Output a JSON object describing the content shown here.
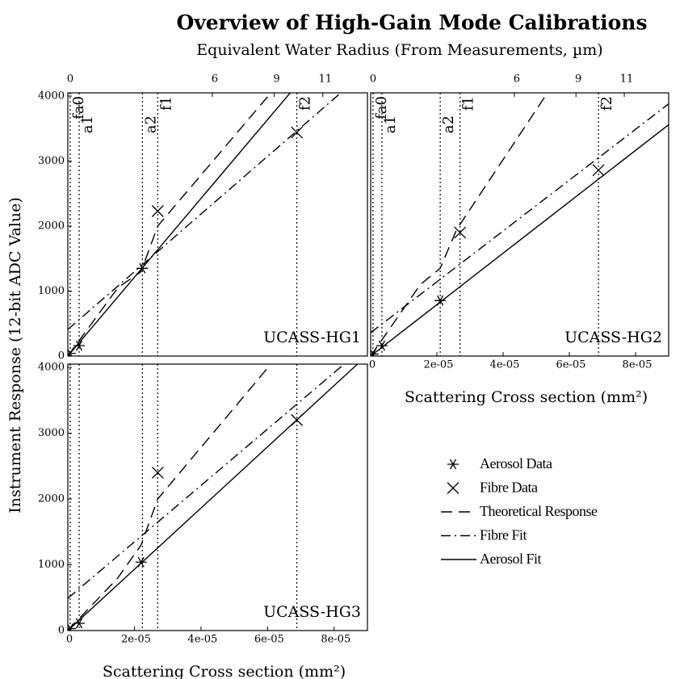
{
  "title": "Overview of High-Gain Mode Calibrations",
  "x2label": "Equivalent Water Radius (From Measurements, µm)",
  "ylabel": "Instrument Response (12-bit ADC Value)",
  "chart_data": [
    {
      "type": "line",
      "label": "UCASS-HG1",
      "xlim": [
        0,
        9e-05
      ],
      "ylim": [
        0,
        4050
      ],
      "yticks": [
        0,
        1000,
        2000,
        3000,
        4000
      ],
      "x2ticks": [
        0,
        {
          "value": 4.34e-05,
          "label": "6"
        },
        {
          "value": 6.2e-05,
          "label": "9"
        },
        {
          "value": 7.66e-05,
          "label": "11"
        }
      ],
      "vlines": [
        7e-07,
        3.4e-06,
        2.24e-05,
        2.7e-05,
        6.88e-05
      ],
      "vline_labels": [
        "fa0",
        "a1",
        "a2",
        "f1",
        "f2"
      ],
      "series": [
        {
          "name": "Aerosol Data",
          "style": "asterisk",
          "color": "#000000",
          "x": [
            7e-07,
            3.4e-06,
            2.24e-05
          ],
          "values": [
            40,
            160,
            1350
          ]
        },
        {
          "name": "Fibre Data",
          "style": "cross",
          "color": "#000000",
          "x": [
            2.7e-05,
            6.88e-05
          ],
          "values": [
            2230,
            3440
          ]
        },
        {
          "name": "Theoretical Response",
          "style": "dashed",
          "color": "#000000",
          "x": [
            0,
            1.5e-05,
            2.2e-05,
            2.7e-05,
            6.1e-05
          ],
          "values": [
            0,
            1050,
            1300,
            2000,
            4050
          ]
        },
        {
          "name": "Fibre Fit",
          "style": "dashdot",
          "color": "#000000",
          "x": [
            0,
            8.2e-05
          ],
          "values": [
            410,
            4050
          ]
        },
        {
          "name": "Aerosol Fit",
          "style": "solid",
          "color": "#000000",
          "x": [
            0,
            6.68e-05
          ],
          "values": [
            0,
            4050
          ]
        }
      ]
    },
    {
      "type": "line",
      "label": "UCASS-HG2",
      "xlabel": "Scattering Cross section (mm²)",
      "xlim": [
        0,
        9e-05
      ],
      "ylim": [
        0,
        4050
      ],
      "xticks": [
        0,
        {
          "value": 2e-05,
          "label": "2e-05"
        },
        {
          "value": 4e-05,
          "label": "4e-05"
        },
        {
          "value": 6e-05,
          "label": "6e-05"
        },
        {
          "value": 8e-05,
          "label": "8e-05"
        }
      ],
      "x2ticks": [
        0,
        {
          "value": 4.34e-05,
          "label": "6"
        },
        {
          "value": 6.2e-05,
          "label": "9"
        },
        {
          "value": 7.66e-05,
          "label": "11"
        }
      ],
      "vlines": [
        7e-07,
        3.4e-06,
        2.1e-05,
        2.7e-05,
        6.88e-05
      ],
      "vline_labels": [
        "fa0",
        "a1",
        "a2",
        "f1",
        "f2"
      ],
      "series": [
        {
          "name": "Aerosol Data",
          "style": "asterisk",
          "color": "#000000",
          "x": [
            7e-07,
            3.4e-06,
            2.1e-05
          ],
          "values": [
            30,
            160,
            855
          ]
        },
        {
          "name": "Fibre Data",
          "style": "cross",
          "color": "#000000",
          "x": [
            2.7e-05,
            6.88e-05
          ],
          "values": [
            1900,
            2860
          ]
        },
        {
          "name": "Theoretical Response",
          "style": "dashed",
          "color": "#000000",
          "x": [
            0,
            1.5e-05,
            2.1e-05,
            2.6e-05,
            5.34e-05
          ],
          "values": [
            0,
            1100,
            1350,
            1950,
            4050
          ]
        },
        {
          "name": "Fibre Fit",
          "style": "dashdot",
          "color": "#000000",
          "x": [
            0,
            9e-05
          ],
          "values": [
            360,
            3880
          ]
        },
        {
          "name": "Aerosol Fit",
          "style": "solid",
          "color": "#000000",
          "x": [
            0,
            9e-05
          ],
          "values": [
            0,
            3560
          ]
        }
      ]
    },
    {
      "type": "line",
      "label": "UCASS-HG3",
      "xlabel": "Scattering Cross section (mm²)",
      "xlim": [
        0,
        9e-05
      ],
      "ylim": [
        0,
        4050
      ],
      "yticks": [
        0,
        1000,
        2000,
        3000,
        4000
      ],
      "xticks": [
        0,
        {
          "value": 2e-05,
          "label": "2e-05"
        },
        {
          "value": 4e-05,
          "label": "4e-05"
        },
        {
          "value": 6e-05,
          "label": "6e-05"
        },
        {
          "value": 8e-05,
          "label": "8e-05"
        }
      ],
      "vlines": [
        7e-07,
        3.4e-06,
        2.24e-05,
        2.7e-05,
        6.88e-05
      ],
      "series": [
        {
          "name": "Aerosol Data",
          "style": "asterisk",
          "color": "#000000",
          "x": [
            7e-07,
            3.4e-06,
            2.2e-05
          ],
          "values": [
            30,
            110,
            1040
          ]
        },
        {
          "name": "Fibre Data",
          "style": "cross",
          "color": "#000000",
          "x": [
            2.7e-05,
            6.88e-05
          ],
          "values": [
            2400,
            3200
          ]
        },
        {
          "name": "Theoretical Response",
          "style": "dashed",
          "color": "#000000",
          "x": [
            0,
            1.5e-05,
            2.2e-05,
            2.7e-05,
            6.1e-05
          ],
          "values": [
            0,
            800,
            1300,
            2000,
            4050
          ]
        },
        {
          "name": "Fibre Fit",
          "style": "dashdot",
          "color": "#000000",
          "x": [
            0,
            8.3e-05
          ],
          "values": [
            490,
            4050
          ]
        },
        {
          "name": "Aerosol Fit",
          "style": "solid",
          "color": "#000000",
          "x": [
            0,
            8.7e-05
          ],
          "values": [
            0,
            4050
          ]
        }
      ]
    }
  ]
}
